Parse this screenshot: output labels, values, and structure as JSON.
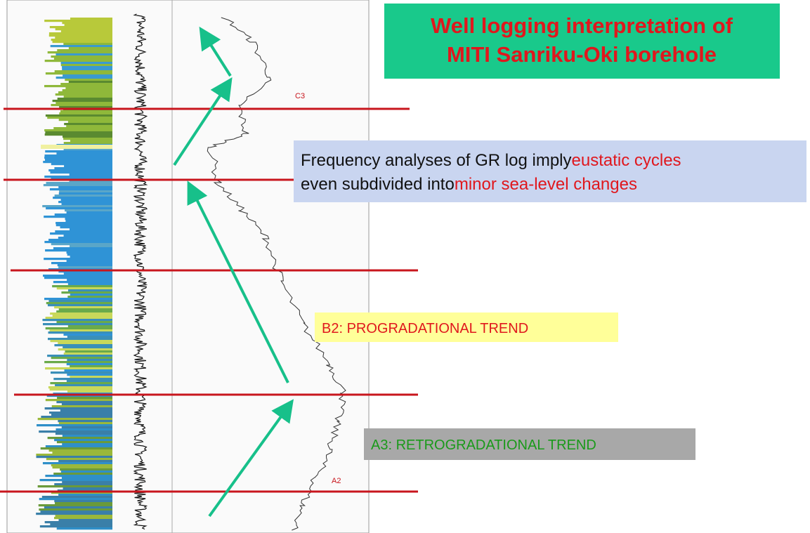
{
  "title": {
    "line1": "Well logging interpretation of",
    "line2": "MITI Sanriku-Oki borehole"
  },
  "note": {
    "line1": "Frequency analyses of GR log imply",
    "line1_highlight": "eustatic cycles",
    "line2": "even subdivided into",
    "line2_highlight": "minor sea-level changes"
  },
  "labels": {
    "b2": "B2: PROGRADATIONAL TREND",
    "a3": "A3: RETROGRADATIONAL TREND",
    "c3": "C3",
    "a2": "A2"
  }
}
